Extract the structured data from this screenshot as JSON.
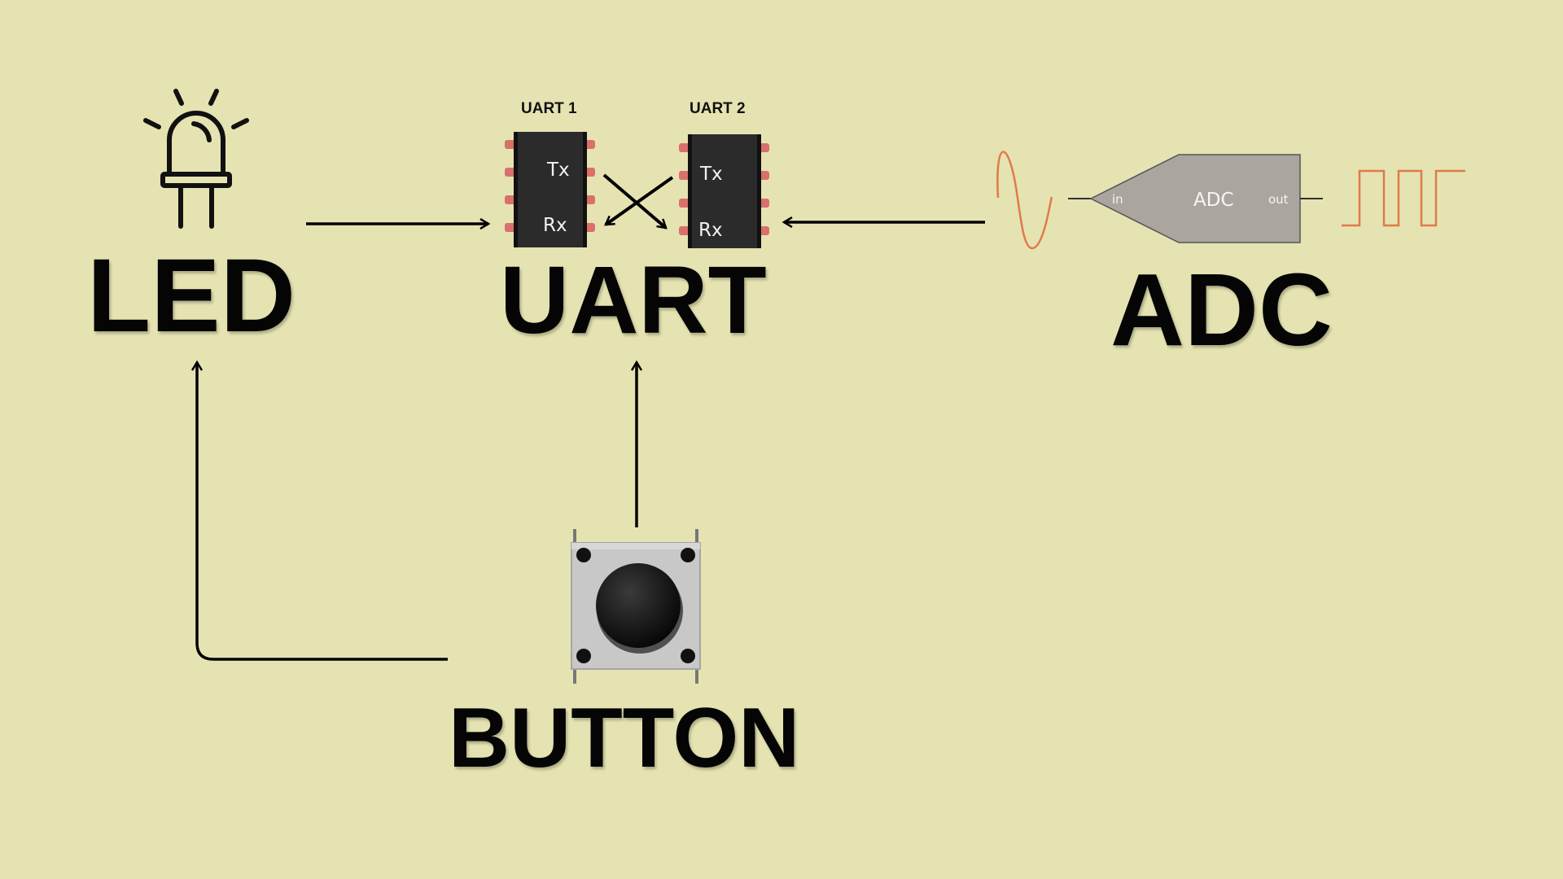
{
  "labels": {
    "led": "LED",
    "uart": "UART",
    "adc": "ADC",
    "button": "BUTTON"
  },
  "uart_chips": {
    "chip1": {
      "title": "UART 1",
      "tx": "Tx",
      "rx": "Rx"
    },
    "chip2": {
      "title": "UART 2",
      "tx": "Tx",
      "rx": "Rx"
    }
  },
  "adc_block": {
    "name": "ADC",
    "in_label": "in",
    "out_label": "out"
  },
  "colors": {
    "background": "#e6e3b2",
    "chip_body": "#2b2b2b",
    "chip_pin": "#d9706b",
    "adc_body": "#aaa69f",
    "signal": "#e07a4a",
    "arrow": "#000000"
  },
  "icons": [
    "led-icon",
    "uart-chip-icon",
    "adc-symbol-icon",
    "sine-wave-icon",
    "square-wave-icon",
    "push-button-icon"
  ]
}
